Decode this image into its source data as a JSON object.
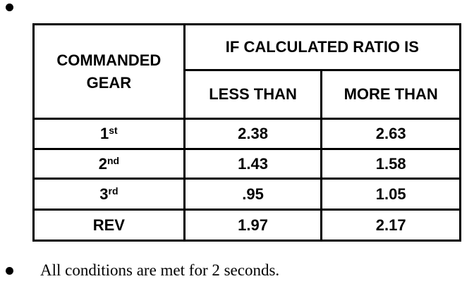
{
  "table": {
    "header": {
      "gear": "COMMANDED GEAR",
      "group": "IF CALCULATED RATIO IS",
      "less": "LESS THAN",
      "more": "MORE THAN"
    },
    "rows": [
      {
        "gear": "1",
        "suffix": "st",
        "less": "2.38",
        "more": "2.63"
      },
      {
        "gear": "2",
        "suffix": "nd",
        "less": "1.43",
        "more": "1.58"
      },
      {
        "gear": "3",
        "suffix": "rd",
        "less": ".95",
        "more": "1.05"
      },
      {
        "gear": "REV",
        "suffix": null,
        "less": "1.97",
        "more": "2.17"
      }
    ]
  },
  "note": "All conditions are met for 2 seconds."
}
